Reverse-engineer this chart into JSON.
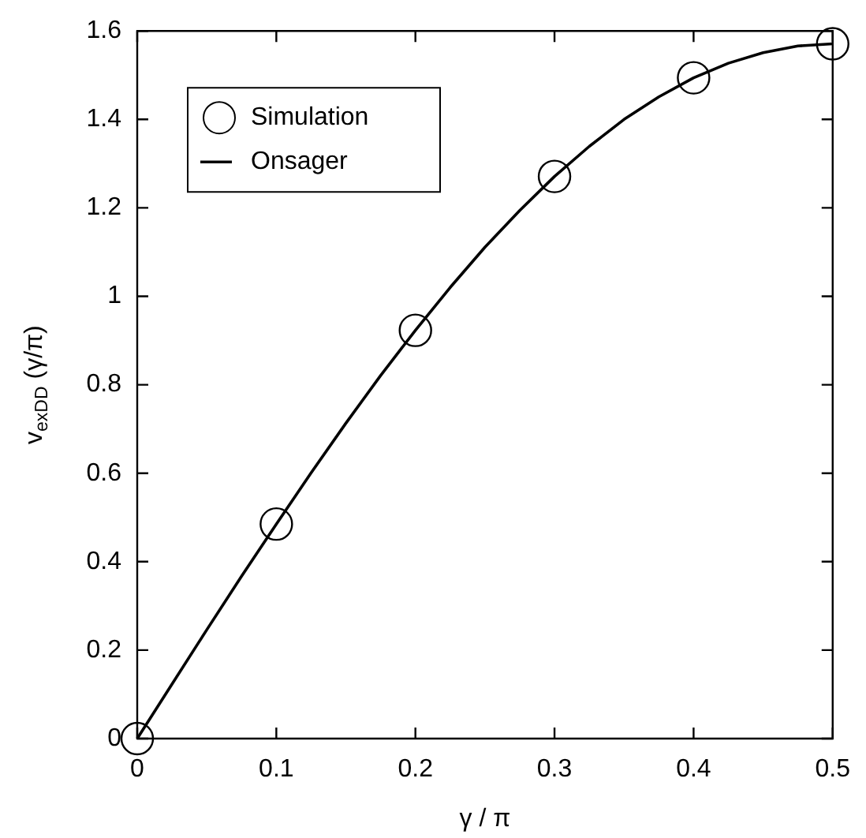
{
  "chart_data": {
    "type": "scatter",
    "xlabel": "γ / π",
    "ylabel": "v$_{exDD}$ (γ/π)",
    "xlim": [
      0,
      0.5
    ],
    "ylim": [
      0,
      1.6
    ],
    "xticks": [
      0,
      0.1,
      0.2,
      0.3,
      0.4,
      0.5
    ],
    "yticks": [
      0,
      0.2,
      0.4,
      0.6,
      0.8,
      1,
      1.2,
      1.4,
      1.6
    ],
    "grid": false,
    "legend": "top left",
    "series": [
      {
        "name": "Simulation",
        "type": "scatter",
        "marker": "circle",
        "color": "#000000",
        "x": [
          0,
          0.1,
          0.2,
          0.3,
          0.4,
          0.5
        ],
        "values": [
          0,
          0.485,
          0.923,
          1.271,
          1.494,
          1.571
        ]
      },
      {
        "name": "Onsager",
        "type": "line",
        "marker": "none",
        "line_style": "solid",
        "color": "#000000",
        "x": [
          0,
          0.025,
          0.05,
          0.075,
          0.1,
          0.125,
          0.15,
          0.175,
          0.2,
          0.225,
          0.25,
          0.275,
          0.3,
          0.325,
          0.35,
          0.375,
          0.4,
          0.425,
          0.45,
          0.475,
          0.5
        ],
        "values": [
          0,
          0.123,
          0.246,
          0.367,
          0.485,
          0.601,
          0.713,
          0.821,
          0.923,
          1.02,
          1.111,
          1.194,
          1.271,
          1.339,
          1.4,
          1.451,
          1.494,
          1.527,
          1.551,
          1.566,
          1.571
        ]
      }
    ]
  }
}
